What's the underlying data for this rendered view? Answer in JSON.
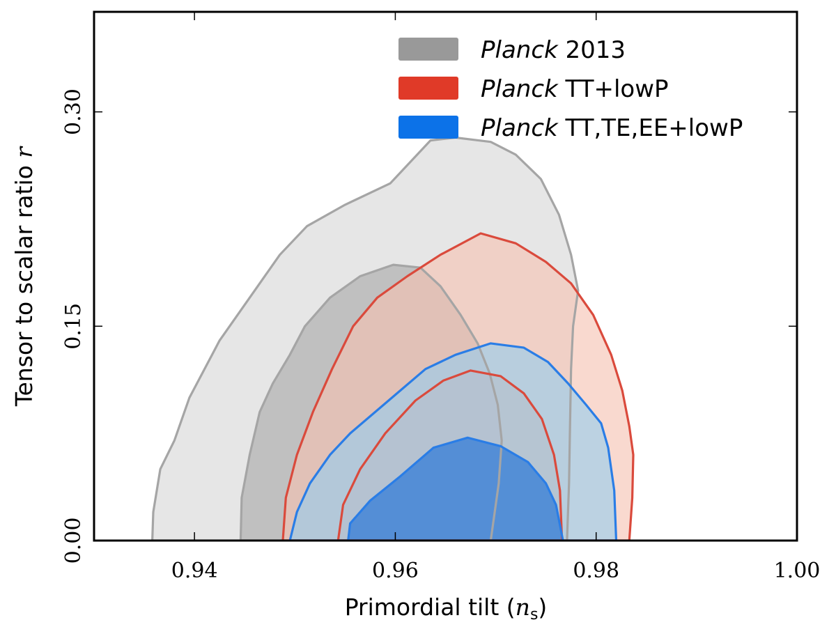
{
  "chart_data": {
    "type": "contour",
    "xlabel": "Primordial tilt",
    "xlabel_math": "n",
    "xlabel_sub": "s",
    "ylabel": "Tensor to scalar ratio",
    "ylabel_math": "r",
    "xlim": [
      0.93,
      1.0
    ],
    "ylim": [
      0.0,
      0.37
    ],
    "xticks": [
      0.94,
      0.96,
      0.98,
      1.0
    ],
    "xtick_labels": [
      "0.94",
      "0.96",
      "0.98",
      "1.00"
    ],
    "yticks": [
      0.0,
      0.15,
      0.3
    ],
    "ytick_labels": [
      "0.00",
      "0.15",
      "0.30"
    ],
    "legend_position": "top-right",
    "series": [
      {
        "name": "Planck 2013",
        "legend_italic": "Planck",
        "legend_rest": " 2013",
        "color": "#999999",
        "fill_outer": "#d6d6d6",
        "fill_inner": "#a8a8a8",
        "stroke": "#a5a5a5",
        "contour_95": [
          [
            0.9358,
            0.0
          ],
          [
            0.9359,
            0.02
          ],
          [
            0.9366,
            0.05
          ],
          [
            0.938,
            0.07
          ],
          [
            0.9395,
            0.1
          ],
          [
            0.941,
            0.12
          ],
          [
            0.9425,
            0.14
          ],
          [
            0.9445,
            0.16
          ],
          [
            0.9465,
            0.18
          ],
          [
            0.9485,
            0.2
          ],
          [
            0.9512,
            0.22
          ],
          [
            0.955,
            0.235
          ],
          [
            0.9595,
            0.25
          ],
          [
            0.9635,
            0.28
          ],
          [
            0.966,
            0.282
          ],
          [
            0.9695,
            0.279
          ],
          [
            0.972,
            0.27
          ],
          [
            0.9745,
            0.253
          ],
          [
            0.9763,
            0.228
          ],
          [
            0.9775,
            0.2
          ],
          [
            0.9782,
            0.175
          ],
          [
            0.9777,
            0.15
          ],
          [
            0.9775,
            0.12
          ],
          [
            0.9774,
            0.08
          ],
          [
            0.9773,
            0.04
          ],
          [
            0.9771,
            0.0
          ]
        ],
        "contour_68": [
          [
            0.9446,
            0.0
          ],
          [
            0.9447,
            0.03
          ],
          [
            0.9455,
            0.06
          ],
          [
            0.9465,
            0.09
          ],
          [
            0.9478,
            0.11
          ],
          [
            0.9495,
            0.13
          ],
          [
            0.951,
            0.15
          ],
          [
            0.9535,
            0.17
          ],
          [
            0.9565,
            0.185
          ],
          [
            0.9598,
            0.193
          ],
          [
            0.9625,
            0.191
          ],
          [
            0.9645,
            0.178
          ],
          [
            0.9665,
            0.158
          ],
          [
            0.9682,
            0.138
          ],
          [
            0.9694,
            0.117
          ],
          [
            0.9702,
            0.095
          ],
          [
            0.9706,
            0.07
          ],
          [
            0.9703,
            0.04
          ],
          [
            0.9698,
            0.015
          ],
          [
            0.9695,
            0.0
          ]
        ]
      },
      {
        "name": "Planck TT+lowP",
        "legend_italic": "Planck",
        "legend_rest": " TT+lowP",
        "color": "#e03a28",
        "fill_outer": "#f5c1b2",
        "fill_inner": "#e8a895",
        "stroke": "#da4a3c",
        "contour_95": [
          [
            0.9488,
            0.0
          ],
          [
            0.9491,
            0.03
          ],
          [
            0.9502,
            0.06
          ],
          [
            0.9518,
            0.09
          ],
          [
            0.9537,
            0.12
          ],
          [
            0.9558,
            0.15
          ],
          [
            0.9582,
            0.17
          ],
          [
            0.9612,
            0.185
          ],
          [
            0.9645,
            0.2
          ],
          [
            0.9685,
            0.215
          ],
          [
            0.972,
            0.208
          ],
          [
            0.975,
            0.195
          ],
          [
            0.9775,
            0.18
          ],
          [
            0.9797,
            0.158
          ],
          [
            0.9815,
            0.13
          ],
          [
            0.9826,
            0.105
          ],
          [
            0.9833,
            0.08
          ],
          [
            0.9837,
            0.06
          ],
          [
            0.9836,
            0.03
          ],
          [
            0.9833,
            0.0
          ]
        ],
        "contour_68": [
          [
            0.9543,
            0.0
          ],
          [
            0.9548,
            0.025
          ],
          [
            0.9565,
            0.05
          ],
          [
            0.959,
            0.075
          ],
          [
            0.962,
            0.098
          ],
          [
            0.9648,
            0.112
          ],
          [
            0.9675,
            0.119
          ],
          [
            0.9705,
            0.115
          ],
          [
            0.9728,
            0.103
          ],
          [
            0.9746,
            0.085
          ],
          [
            0.9758,
            0.06
          ],
          [
            0.9764,
            0.035
          ],
          [
            0.9766,
            0.0
          ]
        ]
      },
      {
        "name": "Planck TT,TE,EE+lowP",
        "legend_italic": "Planck",
        "legend_rest": " TT,TE,EE+lowP",
        "color": "#0c72e8",
        "fill_outer": "#96cdee",
        "fill_inner": "#186dd9",
        "stroke": "#2a7de6",
        "contour_95": [
          [
            0.9495,
            0.0
          ],
          [
            0.9502,
            0.02
          ],
          [
            0.9515,
            0.04
          ],
          [
            0.9535,
            0.06
          ],
          [
            0.9555,
            0.075
          ],
          [
            0.958,
            0.09
          ],
          [
            0.9605,
            0.105
          ],
          [
            0.963,
            0.12
          ],
          [
            0.966,
            0.13
          ],
          [
            0.9695,
            0.138
          ],
          [
            0.9728,
            0.135
          ],
          [
            0.9752,
            0.125
          ],
          [
            0.9772,
            0.11
          ],
          [
            0.979,
            0.095
          ],
          [
            0.9805,
            0.082
          ],
          [
            0.9812,
            0.065
          ],
          [
            0.9818,
            0.035
          ],
          [
            0.982,
            0.0
          ]
        ],
        "contour_68": [
          [
            0.9553,
            0.0
          ],
          [
            0.9555,
            0.012
          ],
          [
            0.9575,
            0.028
          ],
          [
            0.9605,
            0.045
          ],
          [
            0.9638,
            0.065
          ],
          [
            0.9672,
            0.072
          ],
          [
            0.9705,
            0.066
          ],
          [
            0.9732,
            0.055
          ],
          [
            0.975,
            0.04
          ],
          [
            0.976,
            0.025
          ],
          [
            0.9767,
            0.0
          ]
        ]
      }
    ]
  }
}
